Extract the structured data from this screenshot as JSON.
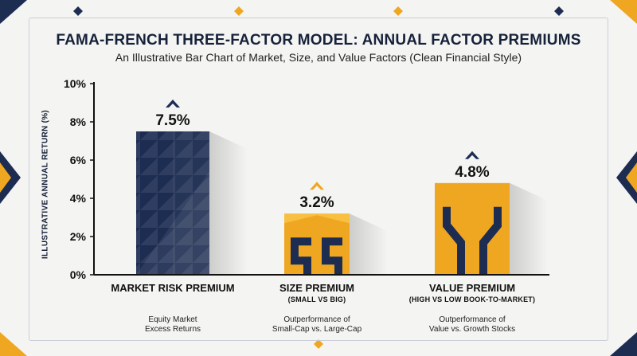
{
  "header": {
    "title": "FAMA-FRENCH THREE-FACTOR MODEL: ANNUAL FACTOR PREMIUMS",
    "subtitle": "An Illustrative Bar Chart of Market, Size, and Value Factors (Clean Financial Style)"
  },
  "colors": {
    "navy": "#1d2d52",
    "gold": "#efa722",
    "background": "#f4f4f2",
    "axis": "#111111"
  },
  "chart_data": {
    "type": "bar",
    "title": "FAMA-FRENCH THREE-FACTOR MODEL: ANNUAL FACTOR PREMIUMS",
    "subtitle": "An Illustrative Bar Chart of Market, Size, and Value Factors (Clean Financial Style)",
    "xlabel": "",
    "ylabel": "ILLUSTRATIVE ANNUAL RETURN (%)",
    "ylim": [
      0,
      10
    ],
    "yticks": [
      "0%",
      "2%",
      "4%",
      "6%",
      "8%",
      "10%"
    ],
    "grid": false,
    "categories": [
      "MARKET RISK PREMIUM",
      "SIZE PREMIUM",
      "VALUE PREMIUM"
    ],
    "values": [
      7.5,
      3.2,
      4.8
    ],
    "data_labels": [
      "7.5%",
      "3.2%",
      "4.8%"
    ],
    "bar_colors": [
      "#1d2d52",
      "#efa722",
      "#efa722"
    ],
    "category_subtitles": [
      "",
      "(SMALL VS BIG)",
      "(HIGH VS LOW BOOK-TO-MARKET)"
    ],
    "category_descriptions": [
      [
        "Equity Market",
        "Excess Returns"
      ],
      [
        "Outperformance of",
        "Small-Cap vs. Large-Cap"
      ],
      [
        "Outperformance of",
        "Value vs. Growth Stocks"
      ]
    ]
  }
}
